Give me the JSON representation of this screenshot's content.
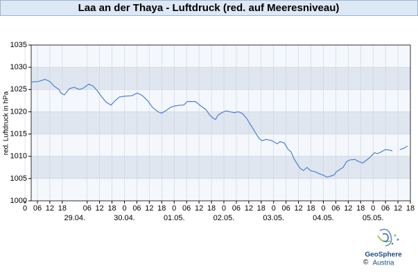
{
  "chart_data": {
    "type": "line",
    "title": "Laa an der Thaya - Luftdruck (red. auf Meeresniveau)",
    "y_label": "red. Luftdruck in hPa",
    "color": "#4a7fd6",
    "x": [
      3,
      6.4,
      9.7,
      12,
      14,
      16.4,
      17.4,
      19,
      19.7,
      21.4,
      23.7,
      26.4,
      28.1,
      30.8,
      32.8,
      34.8,
      36.8,
      39.1,
      41.5,
      43.5,
      45.5,
      48.2,
      51.5,
      54.2,
      56.5,
      59.2,
      61.5,
      64.2,
      65.9,
      68.2,
      70.2,
      72.2,
      74.9,
      76.6,
      78.3,
      82.3,
      84.9,
      87.3,
      89.3,
      91,
      92,
      93.3,
      95,
      97,
      99,
      101,
      103,
      105,
      107,
      109,
      111,
      113,
      114.4,
      116.4,
      118.4,
      119.7,
      121.7,
      123.1,
      125.1,
      127.1,
      128.4,
      129.8,
      131.1,
      132.8,
      134.4,
      136.1,
      137.8,
      140.1,
      142.5,
      143.8,
      145.8,
      147.8,
      149.2,
      150.2,
      151.8,
      153.5,
      155.2,
      156.9,
      159.2,
      161.2,
      162.9,
      164.5,
      166.6,
      168.6,
      170.2,
      171.9,
      173.9,
      175.9,
      177.3,
      179,
      180.9,
      182.9,
      184.6
    ],
    "values": [
      1026.7,
      1026.8,
      1027.3,
      1026.8,
      1025.8,
      1025,
      1024.2,
      1023.8,
      1024.2,
      1025.2,
      1025.5,
      1025,
      1025.3,
      1026.2,
      1025.8,
      1024.8,
      1023.5,
      1022.2,
      1021.5,
      1022.5,
      1023.3,
      1023.5,
      1023.6,
      1024.2,
      1023.7,
      1022.5,
      1021,
      1020,
      1019.7,
      1020.3,
      1021,
      1021.3,
      1021.5,
      1021.5,
      1022.3,
      1022.3,
      1021.3,
      1020.5,
      1019.2,
      1018.5,
      1018.3,
      1019.3,
      1019.8,
      1020.2,
      1020,
      1019.8,
      1020,
      1019.6,
      1018.5,
      1017,
      1015.5,
      1014,
      1013.5,
      1013.8,
      1013.6,
      1013.4,
      1012.8,
      1013.3,
      1013,
      1011.5,
      1011,
      1009.5,
      1008.5,
      1007.3,
      1006.8,
      1007.5,
      1006.8,
      1006.5,
      1006,
      1005.8,
      1005.3,
      1005.6,
      1005.8,
      1006.5,
      1007,
      1007.5,
      1008.8,
      1009.2,
      1009.3,
      1008.8,
      1008.5,
      1009,
      1009.8,
      1010.8,
      1010.6,
      1011,
      1011.5,
      1011.4,
      1011.2,
      null,
      1011.5,
      1011.8,
      1012.3
    ],
    "xlim": [
      3,
      186
    ],
    "ylim": [
      1000,
      1035
    ],
    "yticks": [
      1000,
      1005,
      1010,
      1015,
      1020,
      1025,
      1030,
      1035
    ],
    "xticks": [
      {
        "value": 6,
        "label": "06"
      },
      12,
      18,
      0,
      {
        "value": 30,
        "label": "06"
      },
      {
        "value": 36,
        "label": "12"
      },
      {
        "value": 42,
        "label": "18"
      },
      {
        "value": 48,
        "label": "0"
      },
      {
        "value": 54,
        "label": "06"
      },
      {
        "value": 60,
        "label": "12"
      },
      {
        "value": 66,
        "label": "18"
      },
      {
        "value": 72,
        "label": "0"
      },
      {
        "value": 78,
        "label": "06"
      },
      {
        "value": 84,
        "label": "12"
      },
      {
        "value": 90,
        "label": "18"
      },
      {
        "value": 96,
        "label": "0"
      },
      {
        "value": 102,
        "label": "06"
      },
      {
        "value": 108,
        "label": "12"
      },
      {
        "value": 114,
        "label": "18"
      },
      {
        "value": 120,
        "label": "0"
      },
      {
        "value": 126,
        "label": "06"
      },
      {
        "value": 132,
        "label": "12"
      },
      {
        "value": 138,
        "label": "18"
      },
      {
        "value": 144,
        "label": "0"
      },
      {
        "value": 150,
        "label": "06"
      },
      {
        "value": 156,
        "label": "12"
      },
      {
        "value": 162,
        "label": "18"
      },
      {
        "value": 168,
        "label": "0"
      },
      {
        "value": 174,
        "label": "06"
      },
      {
        "value": 180,
        "label": "12"
      },
      {
        "value": 186,
        "label": "18"
      }
    ],
    "date_ticks": [
      {
        "value": 24,
        "label": "29.04."
      },
      {
        "value": 48,
        "label": "30.04."
      },
      {
        "value": 72,
        "label": "01.05."
      },
      {
        "value": 96,
        "label": "02.05."
      },
      {
        "value": 120,
        "label": "03.05."
      },
      {
        "value": 144,
        "label": "04.05."
      },
      {
        "value": 168,
        "label": "05.05."
      }
    ],
    "grid": true
  },
  "logo": {
    "copyright": "©",
    "name": "GeoSphere",
    "country": "Austria"
  }
}
